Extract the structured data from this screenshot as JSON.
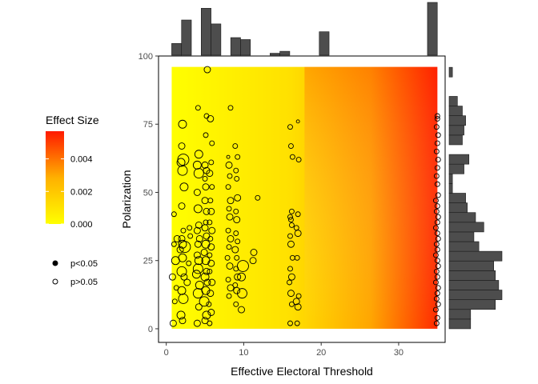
{
  "chart_data": {
    "type": "scatter",
    "title": "",
    "xlabel": "Effective Electoral Threshold",
    "ylabel": "Polarization",
    "xlim": [
      -1,
      36
    ],
    "ylim": [
      -5,
      100
    ],
    "x_ticks": [
      "0",
      "10",
      "20",
      "30"
    ],
    "y_ticks": [
      "0",
      "25",
      "50",
      "75",
      "100"
    ],
    "x_tick_values": [
      0,
      10,
      20,
      30
    ],
    "y_tick_values": [
      0,
      25,
      50,
      75,
      100
    ],
    "grid": false,
    "background_fill": {
      "variable": "Effect Size",
      "x_range": [
        0.7,
        35
      ],
      "y_range": [
        0,
        96
      ],
      "low_color": "#ffff00",
      "mid_color": "#ffa500",
      "high_color": "#ff0000"
    },
    "legend": {
      "position": "left",
      "color_title": "Effect Size",
      "color_ticks": [
        "0.000",
        "0.002",
        "0.004"
      ],
      "color_tick_values": [
        0,
        0.002,
        0.004
      ],
      "color_range": [
        0,
        0.0057
      ],
      "shape_items": [
        {
          "label": "p<0.05",
          "filled": true
        },
        {
          "label": "p>0.05",
          "filled": false
        }
      ]
    },
    "points": [
      [
        0.9,
        2,
        4
      ],
      [
        1.1,
        10,
        3
      ],
      [
        1.3,
        15,
        3
      ],
      [
        0.8,
        19,
        4
      ],
      [
        1.2,
        25,
        5
      ],
      [
        1.0,
        31,
        3
      ],
      [
        1.4,
        33,
        4
      ],
      [
        1.0,
        42,
        3
      ],
      [
        2.1,
        3,
        4
      ],
      [
        1.9,
        5,
        5
      ],
      [
        2.2,
        11,
        6
      ],
      [
        2.0,
        14,
        5
      ],
      [
        2.3,
        19,
        4
      ],
      [
        2.0,
        21,
        6
      ],
      [
        2.1,
        26,
        5
      ],
      [
        1.8,
        29,
        4
      ],
      [
        2.4,
        30,
        7
      ],
      [
        2.1,
        31,
        5
      ],
      [
        2.0,
        33,
        4
      ],
      [
        2.2,
        36,
        3
      ],
      [
        2.0,
        45,
        4
      ],
      [
        2.3,
        52,
        5
      ],
      [
        2.1,
        58,
        6
      ],
      [
        1.9,
        61,
        5
      ],
      [
        2.2,
        62,
        7
      ],
      [
        2.0,
        67,
        4
      ],
      [
        2.1,
        75,
        5
      ],
      [
        2.7,
        17,
        4
      ],
      [
        2.9,
        24,
        3
      ],
      [
        3.1,
        34,
        3
      ],
      [
        3.0,
        37,
        3
      ],
      [
        4.0,
        2,
        4
      ],
      [
        4.2,
        8,
        4
      ],
      [
        4.1,
        13,
        6
      ],
      [
        4.3,
        16,
        5
      ],
      [
        3.9,
        20,
        5
      ],
      [
        4.1,
        22,
        6
      ],
      [
        4.2,
        25,
        5
      ],
      [
        4.0,
        27,
        4
      ],
      [
        4.1,
        31,
        4
      ],
      [
        4.3,
        33,
        4
      ],
      [
        4.0,
        36,
        4
      ],
      [
        4.2,
        38,
        4
      ],
      [
        4.1,
        44,
        5
      ],
      [
        4.0,
        50,
        4
      ],
      [
        4.2,
        57,
        6
      ],
      [
        4.0,
        60,
        5
      ],
      [
        4.2,
        64,
        5
      ],
      [
        4.1,
        81,
        3
      ],
      [
        5.0,
        3,
        4
      ],
      [
        5.2,
        5,
        5
      ],
      [
        4.9,
        10,
        6
      ],
      [
        5.1,
        14,
        5
      ],
      [
        5.3,
        17,
        4
      ],
      [
        5.0,
        19,
        5
      ],
      [
        5.2,
        21,
        4
      ],
      [
        5.1,
        25,
        5
      ],
      [
        4.9,
        28,
        4
      ],
      [
        5.1,
        31,
        5
      ],
      [
        5.2,
        34,
        4
      ],
      [
        5.0,
        37,
        4
      ],
      [
        5.1,
        39,
        3
      ],
      [
        5.2,
        43,
        4
      ],
      [
        5.0,
        47,
        4
      ],
      [
        5.1,
        52,
        4
      ],
      [
        5.0,
        55,
        3
      ],
      [
        5.2,
        58,
        4
      ],
      [
        5.0,
        60,
        4
      ],
      [
        5.1,
        71,
        3
      ],
      [
        5.2,
        78,
        3
      ],
      [
        5.3,
        95,
        4
      ],
      [
        5.6,
        2,
        3
      ],
      [
        5.8,
        6,
        4
      ],
      [
        5.5,
        9,
        3
      ],
      [
        5.7,
        13,
        4
      ],
      [
        5.9,
        17,
        4
      ],
      [
        5.6,
        21,
        3
      ],
      [
        5.8,
        24,
        4
      ],
      [
        5.6,
        27,
        3
      ],
      [
        5.8,
        30,
        4
      ],
      [
        5.7,
        33,
        3
      ],
      [
        5.9,
        36,
        4
      ],
      [
        5.6,
        39,
        3
      ],
      [
        5.8,
        43,
        4
      ],
      [
        5.7,
        47,
        3
      ],
      [
        5.9,
        52,
        3
      ],
      [
        5.6,
        57,
        4
      ],
      [
        5.8,
        61,
        3
      ],
      [
        5.9,
        68,
        3
      ],
      [
        5.7,
        77,
        4
      ],
      [
        8.1,
        12,
        3
      ],
      [
        8.3,
        15,
        4
      ],
      [
        8.0,
        18,
        3
      ],
      [
        8.2,
        23,
        4
      ],
      [
        7.9,
        26,
        3
      ],
      [
        8.1,
        30,
        3
      ],
      [
        8.3,
        33,
        4
      ],
      [
        8.0,
        36,
        3
      ],
      [
        8.2,
        41,
        4
      ],
      [
        8.1,
        44,
        3
      ],
      [
        8.3,
        47,
        4
      ],
      [
        8.0,
        52,
        3
      ],
      [
        8.2,
        56,
        3
      ],
      [
        8.1,
        60,
        4
      ],
      [
        8.0,
        63,
        2
      ],
      [
        8.3,
        81,
        3
      ],
      [
        9.0,
        9,
        3
      ],
      [
        9.1,
        14,
        4
      ],
      [
        8.9,
        16,
        3
      ],
      [
        9.2,
        19,
        4
      ],
      [
        9.0,
        22,
        3
      ],
      [
        9.1,
        26,
        3
      ],
      [
        8.9,
        29,
        4
      ],
      [
        9.2,
        32,
        3
      ],
      [
        9.0,
        35,
        3
      ],
      [
        9.1,
        40,
        4
      ],
      [
        9.0,
        43,
        3
      ],
      [
        9.2,
        48,
        4
      ],
      [
        9.1,
        55,
        3
      ],
      [
        9.0,
        58,
        3
      ],
      [
        9.2,
        63,
        3
      ],
      [
        8.9,
        67,
        3
      ],
      [
        9.7,
        7,
        4
      ],
      [
        9.8,
        13,
        6
      ],
      [
        9.9,
        23,
        7
      ],
      [
        9.7,
        19,
        5
      ],
      [
        11.2,
        25,
        4
      ],
      [
        11.3,
        28,
        4
      ],
      [
        11.8,
        48,
        3
      ],
      [
        16.0,
        2,
        3
      ],
      [
        16.2,
        9,
        3
      ],
      [
        16.1,
        13,
        4
      ],
      [
        15.9,
        17,
        3
      ],
      [
        16.2,
        19,
        4
      ],
      [
        16.0,
        22,
        3
      ],
      [
        16.3,
        26,
        3
      ],
      [
        16.1,
        31,
        4
      ],
      [
        16.0,
        34,
        3
      ],
      [
        16.2,
        38,
        3
      ],
      [
        16.1,
        40,
        3
      ],
      [
        16.0,
        41,
        3
      ],
      [
        16.2,
        43,
        3
      ],
      [
        16.3,
        63,
        3
      ],
      [
        16.1,
        67,
        3
      ],
      [
        16.0,
        74,
        3
      ],
      [
        16.9,
        2,
        3
      ],
      [
        17.0,
        8,
        4
      ],
      [
        16.8,
        10,
        4
      ],
      [
        17.1,
        12,
        3
      ],
      [
        16.9,
        26,
        3
      ],
      [
        17.0,
        35,
        4
      ],
      [
        16.8,
        37,
        3
      ],
      [
        17.0,
        42,
        3
      ],
      [
        17.1,
        62,
        3
      ],
      [
        17.0,
        76,
        2
      ],
      [
        34.9,
        2,
        3
      ],
      [
        35.0,
        4,
        3
      ],
      [
        34.8,
        7,
        3
      ],
      [
        35.1,
        9,
        3
      ],
      [
        34.9,
        11,
        3
      ],
      [
        35.0,
        13,
        3
      ],
      [
        35.1,
        15,
        3
      ],
      [
        34.8,
        17,
        3
      ],
      [
        35.0,
        19,
        3
      ],
      [
        34.9,
        21,
        3
      ],
      [
        35.1,
        23,
        3
      ],
      [
        35.0,
        25,
        3
      ],
      [
        34.8,
        27,
        3
      ],
      [
        35.0,
        29,
        3
      ],
      [
        34.9,
        31,
        3
      ],
      [
        35.1,
        33,
        3
      ],
      [
        35.0,
        35,
        3
      ],
      [
        34.8,
        37,
        3
      ],
      [
        35.0,
        39,
        3
      ],
      [
        35.1,
        41,
        3
      ],
      [
        34.9,
        43,
        3
      ],
      [
        35.0,
        45,
        3
      ],
      [
        34.8,
        47,
        3
      ],
      [
        35.1,
        49,
        3
      ],
      [
        35.0,
        53,
        3
      ],
      [
        34.9,
        56,
        3
      ],
      [
        35.0,
        59,
        3
      ],
      [
        35.1,
        62,
        3
      ],
      [
        34.9,
        65,
        3
      ],
      [
        35.0,
        68,
        3
      ],
      [
        35.1,
        71,
        3
      ],
      [
        34.9,
        74,
        3
      ],
      [
        35.0,
        77,
        3
      ],
      [
        35.0,
        78,
        3
      ]
    ],
    "top_histogram": {
      "bin_start": 0.7,
      "bin_width": 1.27,
      "counts": [
        6,
        18,
        0,
        24,
        16,
        0,
        9,
        8,
        0,
        0,
        1,
        2,
        0,
        0,
        0,
        12,
        0,
        0,
        0,
        0,
        0,
        0,
        0,
        0,
        0,
        0,
        27
      ]
    },
    "right_histogram": {
      "bin_start": 0,
      "bin_width": 3.55,
      "counts": [
        13,
        13,
        28,
        32,
        30,
        28,
        27,
        32,
        18,
        15,
        21,
        16,
        11,
        10,
        2,
        2,
        9,
        12,
        0,
        8,
        9,
        10,
        8,
        5,
        0,
        0,
        2
      ]
    }
  }
}
